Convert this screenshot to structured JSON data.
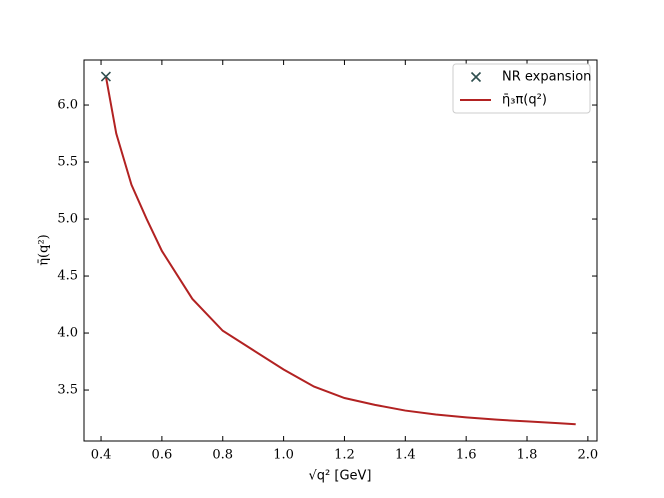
{
  "chart_data": {
    "type": "line",
    "xlabel": "√q² [GeV]",
    "ylabel": "η̄(q²)",
    "xlim": [
      0.344,
      2.03
    ],
    "ylim": [
      3.053,
      6.395
    ],
    "xticks": [
      0.4,
      0.6,
      0.8,
      {
        "value": 1,
        "label": "1.0"
      },
      1.2,
      1.4,
      1.6,
      1.8,
      {
        "value": 2,
        "label": "2.0"
      }
    ],
    "yticks": [
      3.5,
      {
        "value": 4,
        "label": "4.0"
      },
      4.5,
      {
        "value": 5,
        "label": "5.0"
      },
      5.5,
      {
        "value": 6,
        "label": "6.0"
      }
    ],
    "legend": "upper right",
    "series": [
      {
        "name": "NR expansion",
        "type": "scatter",
        "marker": "x",
        "color": "#2f4f4f",
        "x": [
          0.416
        ],
        "values": [
          6.25
        ]
      },
      {
        "name": "η̄₃π(q²)",
        "type": "line",
        "color": "#b22222",
        "x": [
          0.416,
          0.45,
          0.5,
          0.55,
          0.6,
          0.7,
          0.8,
          0.9,
          1.0,
          1.1,
          1.2,
          1.3,
          1.4,
          1.5,
          1.6,
          1.7,
          1.8,
          1.9,
          1.96
        ],
        "values": [
          6.25,
          5.75,
          5.3,
          5.0,
          4.72,
          4.3,
          4.02,
          3.85,
          3.68,
          3.53,
          3.43,
          3.37,
          3.32,
          3.285,
          3.26,
          3.24,
          3.225,
          3.21,
          3.2
        ]
      }
    ]
  }
}
